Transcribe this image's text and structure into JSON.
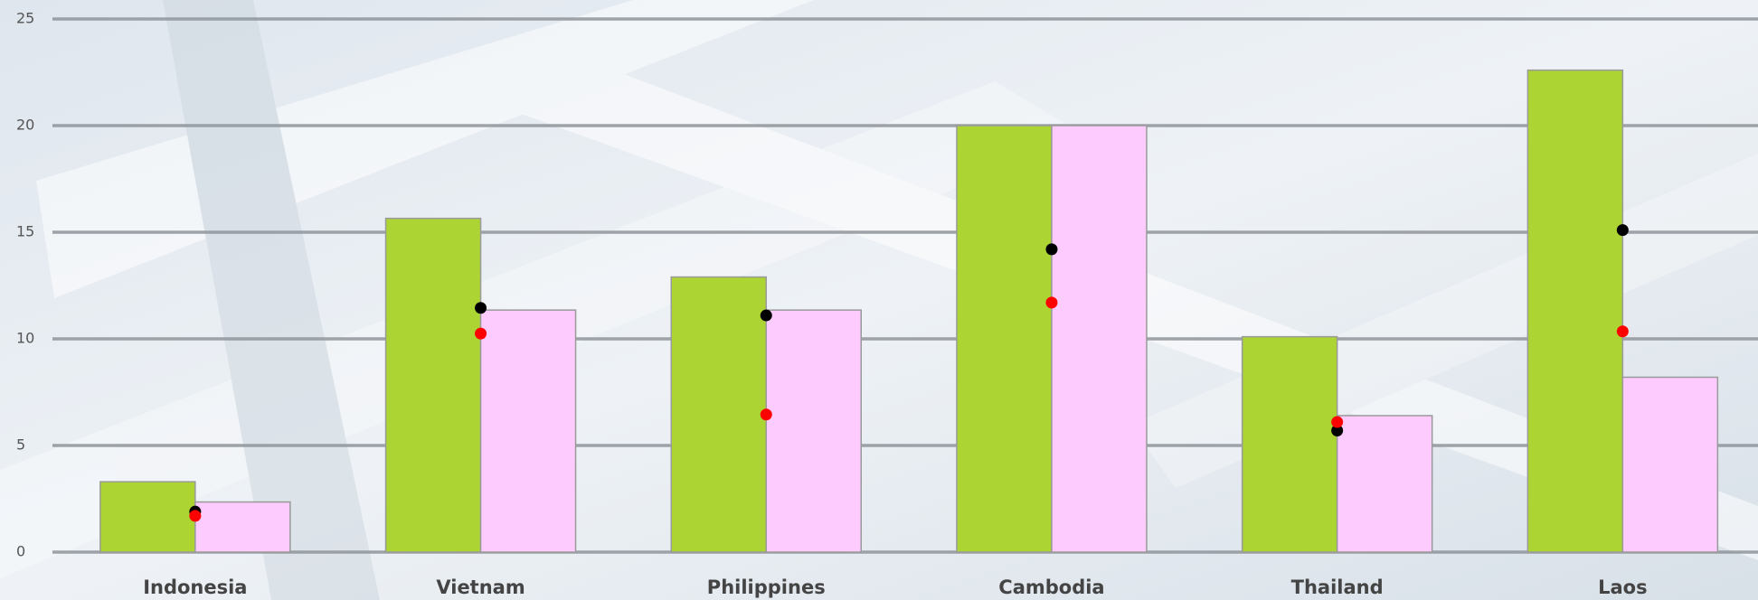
{
  "chart_data": {
    "type": "bar",
    "categories": [
      "Indonesia",
      "Vietnam",
      "Philippines",
      "Cambodia",
      "Thailand",
      "Laos"
    ],
    "series": [
      {
        "style": "bar",
        "color": "#acd432",
        "values": [
          3.3,
          15.65,
          12.9,
          20.0,
          10.1,
          22.6
        ]
      },
      {
        "style": "bar",
        "color": "#fdcbfd",
        "values": [
          2.35,
          11.35,
          11.35,
          20.0,
          6.4,
          8.2
        ]
      },
      {
        "style": "dot",
        "color": "#000000",
        "values": [
          1.9,
          11.45,
          11.1,
          14.2,
          5.7,
          15.1
        ]
      },
      {
        "style": "dot",
        "color": "#ff0000",
        "values": [
          1.7,
          10.25,
          6.45,
          11.7,
          6.1,
          10.35
        ]
      }
    ],
    "ylim": [
      0,
      25
    ],
    "yticks": [
      0,
      5,
      10,
      15,
      20,
      25
    ],
    "grid": true
  }
}
